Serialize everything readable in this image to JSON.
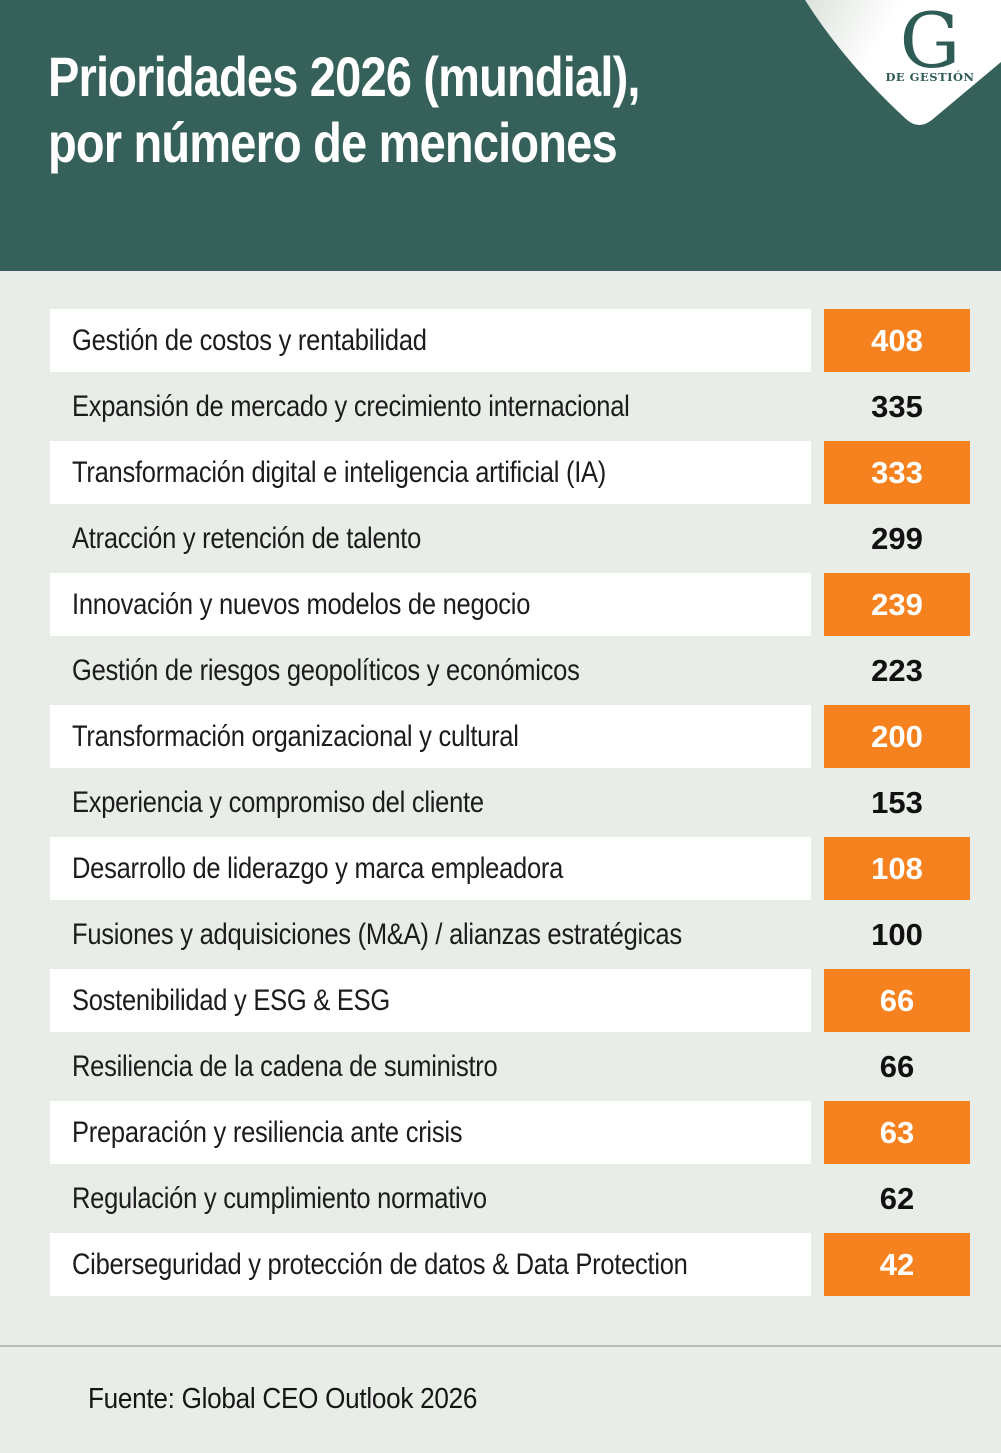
{
  "header": {
    "title_line1": "Prioridades 2026 (mundial),",
    "title_line2": "por número de menciones",
    "logo": {
      "letter": "G",
      "subtitle": "DE GESTIÓN"
    }
  },
  "chart_data": {
    "type": "table",
    "title": "Prioridades 2026 (mundial), por número de menciones",
    "value_label": "número de menciones",
    "categories": [
      "Gestión de costos y rentabilidad",
      "Expansión de mercado y crecimiento internacional",
      "Transformación digital e inteligencia artificial (IA)",
      "Atracción y retención de talento",
      "Innovación y nuevos modelos de negocio",
      "Gestión de riesgos geopolíticos y económicos",
      "Transformación organizacional y cultural",
      "Experiencia y compromiso del cliente",
      "Desarrollo de liderazgo y marca empleadora",
      "Fusiones y adquisiciones (M&A) / alianzas estratégicas",
      "Sostenibilidad y ESG & ESG",
      "Resiliencia de la cadena de suministro",
      "Preparación y resiliencia ante crisis",
      "Regulación y cumplimiento normativo",
      "Ciberseguridad y protección de datos & Data Protection"
    ],
    "values": [
      408,
      335,
      333,
      299,
      239,
      223,
      200,
      153,
      108,
      100,
      66,
      66,
      63,
      62,
      42
    ],
    "layout": "ranked list, descending; alternating rows highlighted with white background and orange value badge",
    "source": "Fuente: Global CEO Outlook 2026"
  },
  "rows": [
    {
      "label": "Gestión de costos y rentabilidad",
      "value": "408",
      "highlighted": true
    },
    {
      "label": "Expansión de mercado y crecimiento internacional",
      "value": "335",
      "highlighted": false
    },
    {
      "label": "Transformación digital e inteligencia artificial (IA)",
      "value": "333",
      "highlighted": true
    },
    {
      "label": "Atracción y retención de talento",
      "value": "299",
      "highlighted": false
    },
    {
      "label": "Innovación y nuevos modelos de negocio",
      "value": "239",
      "highlighted": true
    },
    {
      "label": "Gestión de riesgos geopolíticos y económicos",
      "value": "223",
      "highlighted": false
    },
    {
      "label": "Transformación organizacional y cultural",
      "value": "200",
      "highlighted": true
    },
    {
      "label": "Experiencia y compromiso del cliente",
      "value": "153",
      "highlighted": false
    },
    {
      "label": "Desarrollo de liderazgo y marca empleadora",
      "value": "108",
      "highlighted": true
    },
    {
      "label": "Fusiones y adquisiciones (M&A) / alianzas estratégicas",
      "value": "100",
      "highlighted": false
    },
    {
      "label": "Sostenibilidad y ESG & ESG",
      "value": "66",
      "highlighted": true
    },
    {
      "label": "Resiliencia de la cadena de suministro",
      "value": "66",
      "highlighted": false
    },
    {
      "label": "Preparación y resiliencia ante crisis",
      "value": "63",
      "highlighted": true
    },
    {
      "label": "Regulación y cumplimiento normativo",
      "value": "62",
      "highlighted": false
    },
    {
      "label": "Ciberseguridad y protección de datos & Data Protection",
      "value": "42",
      "highlighted": true
    }
  ],
  "footer": {
    "source": "Fuente: Global CEO Outlook 2026"
  },
  "colors": {
    "header_bg": "#35615a",
    "accent_orange": "#f5821f",
    "page_bg": "#e8ede7",
    "row_bg": "#ffffff",
    "text_dark": "#1c1c1c",
    "logo_green": "#2e5c55"
  }
}
